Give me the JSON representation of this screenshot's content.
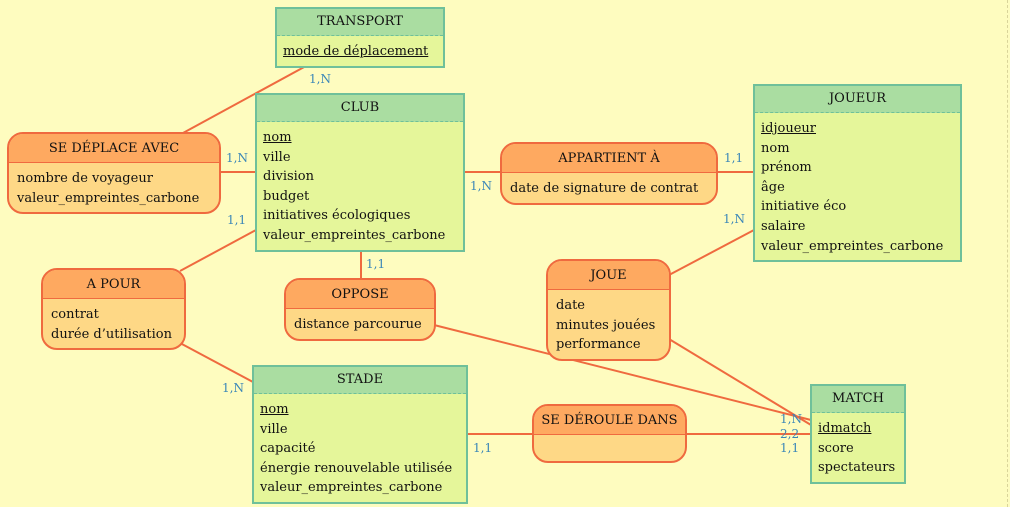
{
  "entities": {
    "transport": {
      "name": "TRANSPORT",
      "attributes": [
        "mode de déplacement"
      ]
    },
    "club": {
      "name": "CLUB",
      "attributes": [
        "nom",
        "ville",
        "division",
        "budget",
        "initiatives écologiques",
        "valeur_empreintes_carbone"
      ]
    },
    "joueur": {
      "name": "JOUEUR",
      "attributes": [
        "idjoueur",
        "nom",
        "prénom",
        "âge",
        "initiative éco",
        "salaire",
        "valeur_empreintes_carbone"
      ]
    },
    "stade": {
      "name": "STADE",
      "attributes": [
        "nom",
        "ville",
        "capacité",
        "énergie renouvelable utilisée",
        "valeur_empreintes_carbone"
      ]
    },
    "match": {
      "name": "MATCH",
      "attributes": [
        "idmatch",
        "score",
        "spectateurs"
      ]
    }
  },
  "associations": {
    "se_deplace_avec": {
      "name": "SE DÉPLACE AVEC",
      "attributes": [
        "nombre de voyageur",
        "valeur_empreintes_carbone"
      ]
    },
    "appartient_a": {
      "name": "APPARTIENT À",
      "attributes": [
        "date de signature de contrat"
      ]
    },
    "a_pour": {
      "name": "A POUR",
      "attributes": [
        "contrat",
        "durée d’utilisation"
      ]
    },
    "oppose": {
      "name": "OPPOSE",
      "attributes": [
        "distance parcourue"
      ]
    },
    "joue": {
      "name": "JOUE",
      "attributes": [
        "date",
        "minutes jouées",
        "performance"
      ]
    },
    "se_deroule_dans": {
      "name": "SE DÉROULE DANS",
      "attributes": []
    }
  },
  "cardinalities": {
    "transport_se_deplace": "1,N",
    "club_se_deplace": "1,N",
    "club_a_pour": "1,1",
    "stade_a_pour": "1,N",
    "club_appartient": "1,N",
    "joueur_appartient": "1,1",
    "joueur_joue": "1,N",
    "club_oppose": "1,1",
    "match_oppose": "1,N",
    "match_joue": "2,2",
    "match_se_deroule": "1,1",
    "stade_se_deroule": "1,1"
  },
  "colors": {
    "background": "#fefcbf",
    "entity_header": "#aadda1",
    "entity_body": "#e5f69a",
    "entity_border": "#6fc09a",
    "assoc_header": "#fea960",
    "assoc_body": "#fed886",
    "assoc_border": "#ef6a3f",
    "link": "#ef6a3f",
    "cardinality": "#3a86b8"
  }
}
